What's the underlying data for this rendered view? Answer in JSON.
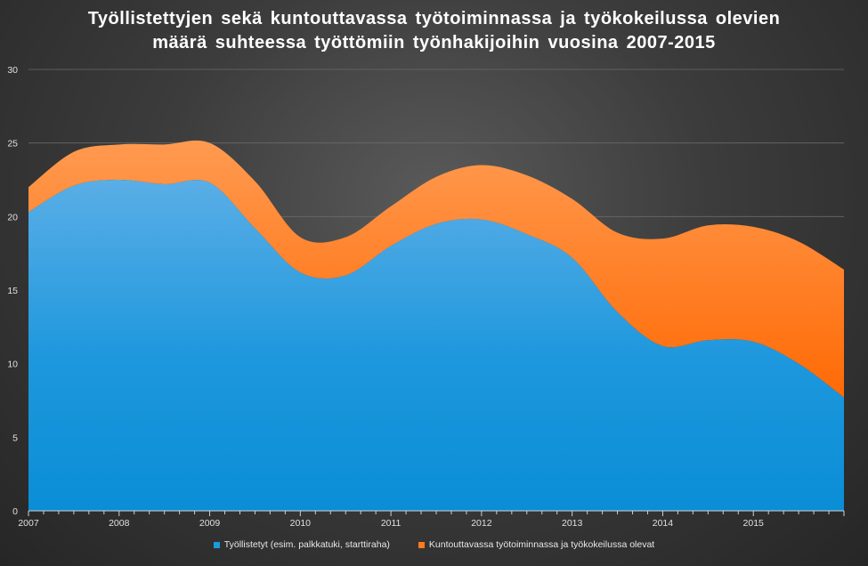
{
  "chart_data": {
    "type": "area",
    "title_lines": [
      "Työllistettyjen sekä kuntouttavassa työtoiminnassa ja työkokeilussa olevien",
      "määrä suhteessa työttömiin työnhakijoihin vuosina 2007-2015"
    ],
    "stacked": true,
    "ylim": [
      0,
      30
    ],
    "yticks": [
      0,
      5,
      10,
      15,
      20,
      25,
      30
    ],
    "xlim": [
      2007,
      2016
    ],
    "xticks": [
      "2007",
      "2008",
      "2009",
      "2010",
      "2011",
      "2012",
      "2013",
      "2014",
      "2015"
    ],
    "grid": true,
    "legend_position": "bottom",
    "x": [
      2007.0,
      2007.5,
      2008.0,
      2008.5,
      2009.0,
      2009.5,
      2010.0,
      2010.5,
      2011.0,
      2011.5,
      2012.0,
      2012.5,
      2013.0,
      2013.5,
      2014.0,
      2014.5,
      2015.0,
      2015.5,
      2016.0
    ],
    "series": [
      {
        "name": "Työllistetyt (esim. palkkatuki, starttiraha)",
        "color": "#1a9bde",
        "values": [
          20.3,
          22.1,
          22.5,
          22.2,
          22.3,
          19.2,
          16.2,
          16.0,
          18.0,
          19.5,
          19.8,
          18.8,
          17.2,
          13.5,
          11.2,
          11.6,
          11.5,
          10.0,
          7.7
        ]
      },
      {
        "name": "Kuntouttavassa työtoiminnassa ja työkokeilussa olevat",
        "color": "#ff7a1a",
        "values": [
          1.7,
          2.3,
          2.4,
          2.7,
          2.7,
          3.2,
          2.4,
          2.6,
          2.7,
          3.2,
          3.7,
          4.0,
          4.0,
          5.4,
          7.3,
          7.8,
          7.8,
          8.3,
          8.7
        ]
      }
    ]
  }
}
